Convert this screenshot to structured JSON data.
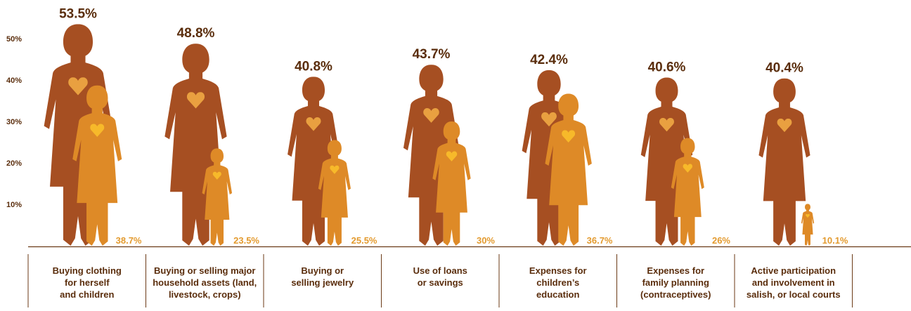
{
  "colors": {
    "text": "#5a2d0c",
    "woman": "#a64f22",
    "girl": "#de8a27",
    "heart_woman": "#e9a040",
    "heart_girl": "#f7b92a",
    "axis": "#6b3a16",
    "small_label": "#e39a2e"
  },
  "chart_data": {
    "type": "pictograph-bar",
    "ylim": [
      0,
      60
    ],
    "yticks": [
      "10%",
      "20%",
      "30%",
      "40%",
      "50%",
      "60%"
    ],
    "categories": [
      "Buying clothing\nfor herself\nand children",
      "Buying or selling major\nhousehold assets (land,\nlivestock, crops)",
      "Buying or\nselling jewelry",
      "Use of loans\nor savings",
      "Expenses for\nchildren’s\neducation",
      "Expenses for\nfamily planning\n(contraceptives)",
      "Active participation\nand involvement in\nsalish, or local courts"
    ],
    "series": [
      {
        "values": [
          53.5,
          48.8,
          40.8,
          43.7,
          42.4,
          40.6,
          40.4
        ],
        "labels": [
          "53.5%",
          "48.8%",
          "40.8%",
          "43.7%",
          "42.4%",
          "40.6%",
          "40.4%"
        ]
      },
      {
        "values": [
          38.7,
          23.5,
          25.5,
          30,
          36.7,
          26,
          10.1
        ],
        "labels": [
          "38.7%",
          "23.5%",
          "25.5%",
          "30%",
          "36.7%",
          "26%",
          "10.1%"
        ]
      }
    ]
  }
}
